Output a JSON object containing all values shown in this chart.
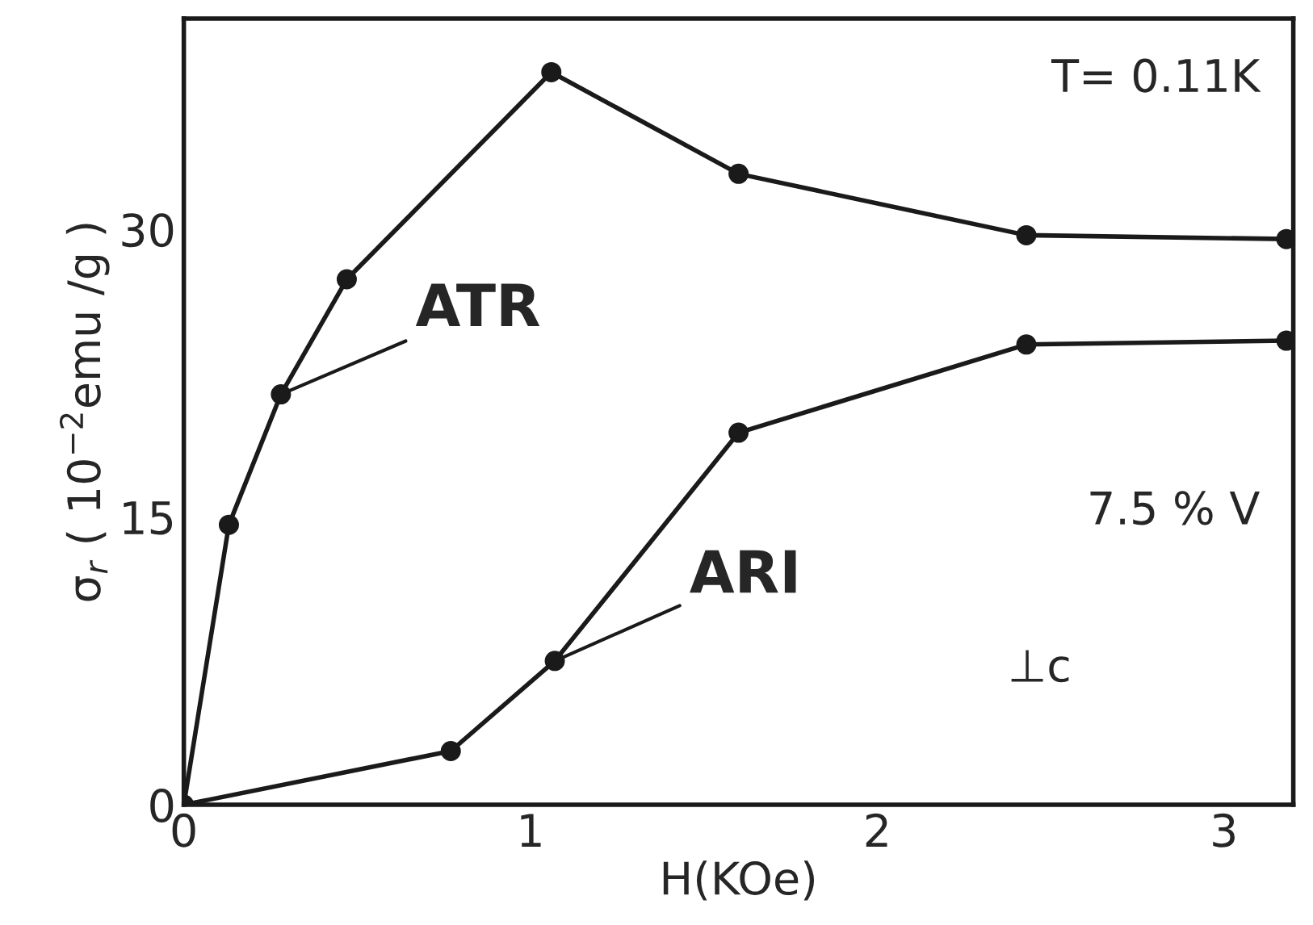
{
  "chart_data": {
    "type": "line",
    "xlabel": "H(KOe)",
    "ylabel": "σ$_{r}$ ( 10$^{−2}$emu /g )",
    "series": [
      {
        "name": "ATR",
        "color": "#1a1a1a",
        "x": [
          0,
          0.13,
          0.28,
          0.47,
          1.06,
          1.6,
          2.43,
          3.18
        ],
        "values": [
          0,
          14.6,
          21.4,
          27.4,
          38.2,
          32.9,
          29.7,
          29.5
        ]
      },
      {
        "name": "ARI",
        "color": "#1a1a1a",
        "x": [
          0,
          0.77,
          1.07,
          1.6,
          2.43,
          3.18
        ],
        "values": [
          0,
          2.8,
          7.5,
          19.4,
          24.0,
          24.2
        ]
      }
    ],
    "xlim": [
      0,
      3.2
    ],
    "ylim": [
      0,
      41
    ],
    "xticks": [
      0,
      1,
      2,
      3
    ],
    "yticks": [
      0,
      15,
      30
    ],
    "marker": "circle",
    "line_style": "solid",
    "grid": false,
    "legend": false,
    "annotations": [
      "T= 0.11K",
      "7.5 % V",
      "⊥c"
    ]
  }
}
